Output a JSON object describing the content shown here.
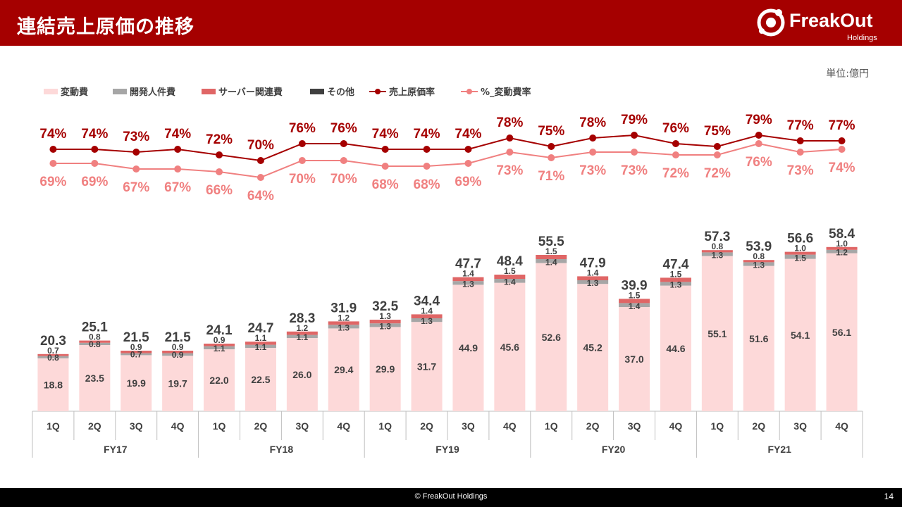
{
  "header": {
    "title": "連結売上原価の推移"
  },
  "logo": {
    "name": "FreakOut",
    "sub": "Holdings"
  },
  "unit_label": "単位:億円",
  "footer": {
    "copyright": "© FreakOut Holdings",
    "page": "14"
  },
  "colors": {
    "variable": "#fdd9d9",
    "dev": "#a6a6a6",
    "server": "#e06666",
    "other": "#3f3f3f",
    "cogs_rate": "#a50000",
    "variable_rate": "#f08080"
  },
  "chart_data": {
    "type": "bar",
    "categories": [
      "1Q",
      "2Q",
      "3Q",
      "4Q",
      "1Q",
      "2Q",
      "3Q",
      "4Q",
      "1Q",
      "2Q",
      "3Q",
      "4Q",
      "1Q",
      "2Q",
      "3Q",
      "4Q",
      "1Q",
      "2Q",
      "3Q",
      "4Q"
    ],
    "groups": [
      "FY17",
      "FY18",
      "FY19",
      "FY20",
      "FY21"
    ],
    "legend": [
      "変動費",
      "開発人件費",
      "サーバー関連費",
      "その他",
      "売上原価率",
      "%_変動費率"
    ],
    "legend_position": "top-left",
    "totals": [
      20.3,
      25.1,
      21.5,
      21.5,
      24.1,
      24.7,
      28.3,
      31.9,
      32.5,
      34.4,
      47.7,
      48.4,
      55.5,
      47.9,
      39.9,
      47.4,
      57.3,
      53.9,
      56.6,
      58.4
    ],
    "series": [
      {
        "name": "変動費",
        "values": [
          18.8,
          23.5,
          19.9,
          19.7,
          22.0,
          22.5,
          26.0,
          29.4,
          29.9,
          31.7,
          44.9,
          45.6,
          52.6,
          45.2,
          37.0,
          44.6,
          55.1,
          51.6,
          54.1,
          56.1
        ]
      },
      {
        "name": "開発人件費",
        "values": [
          0.8,
          0.8,
          0.7,
          0.9,
          1.1,
          1.1,
          1.1,
          1.3,
          1.3,
          1.3,
          1.3,
          1.4,
          1.4,
          1.3,
          1.4,
          1.3,
          1.3,
          1.3,
          1.5,
          1.2
        ]
      },
      {
        "name": "サーバー関連費",
        "values": [
          0.7,
          0.8,
          0.9,
          0.9,
          0.9,
          1.1,
          1.2,
          1.2,
          1.3,
          1.4,
          1.4,
          1.5,
          1.5,
          1.4,
          1.5,
          1.5,
          0.8,
          0.8,
          1.0,
          1.0
        ]
      },
      {
        "name": "その他",
        "values": [
          0,
          0,
          0,
          0,
          0,
          0,
          0,
          0,
          0,
          0,
          0,
          0,
          0,
          0,
          0,
          0,
          0,
          0,
          0,
          0
        ]
      }
    ],
    "lines": [
      {
        "name": "売上原価率",
        "values": [
          74,
          74,
          73,
          74,
          72,
          70,
          76,
          76,
          74,
          74,
          74,
          78,
          75,
          78,
          79,
          76,
          75,
          79,
          77,
          77
        ]
      },
      {
        "name": "%_変動費率",
        "values": [
          69,
          69,
          67,
          67,
          66,
          64,
          70,
          70,
          68,
          68,
          69,
          73,
          71,
          73,
          73,
          72,
          72,
          76,
          73,
          74
        ]
      }
    ]
  }
}
